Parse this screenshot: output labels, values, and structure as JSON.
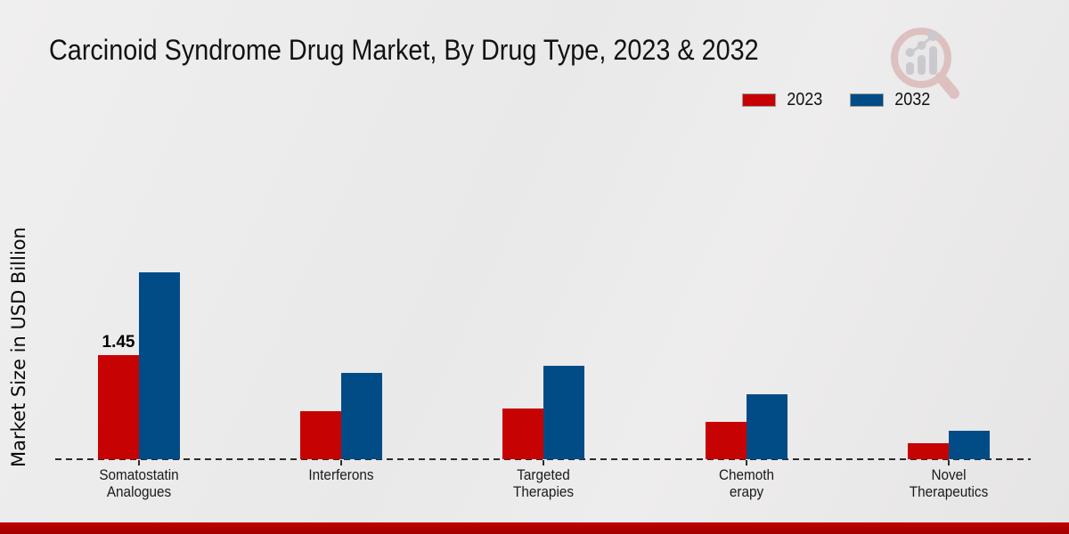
{
  "chart_data": {
    "type": "bar",
    "title": "Carcinoid Syndrome Drug Market, By Drug Type, 2023 & 2032",
    "ylabel": "Market Size in USD Billion",
    "xlabel": "",
    "ylim": [
      0,
      3
    ],
    "grid": false,
    "legend_position": "top-right",
    "baseline_style": "dashed",
    "categories": [
      "Somatostatin Analogues",
      "Interferons",
      "Targeted Therapies",
      "Chemotherapy",
      "Novel Therapeutics"
    ],
    "categories_display": [
      "Somatostatin\nAnalogues",
      "Interferons",
      "Targeted\nTherapies",
      "Chemoth\nerapy",
      "Novel\nTherapeutics"
    ],
    "series": [
      {
        "name": "2023",
        "color": "#c70202",
        "values": [
          1.45,
          0.67,
          0.71,
          0.52,
          0.22
        ]
      },
      {
        "name": "2032",
        "color": "#014c87",
        "values": [
          2.6,
          1.2,
          1.3,
          0.9,
          0.4
        ]
      }
    ],
    "point_labels": [
      {
        "series_index": 0,
        "category_index": 0,
        "text": "1.45"
      }
    ]
  },
  "branding": {
    "logo_icon": "magnifier-bar-chart-logo",
    "footer_color": "#c00101",
    "footer_color_dark": "#a00000"
  }
}
